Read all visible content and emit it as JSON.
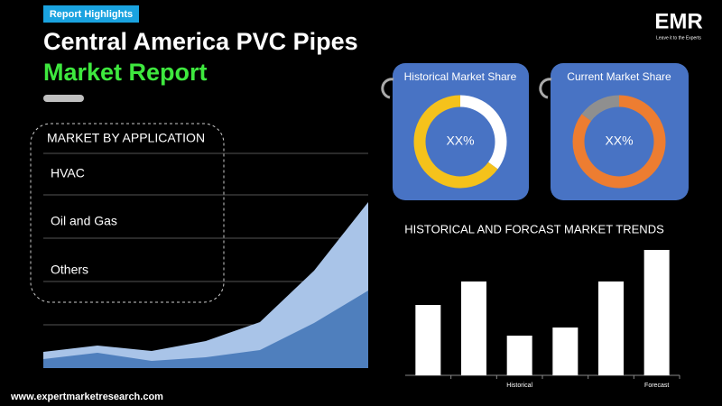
{
  "header": {
    "badge": "Report Highlights",
    "title_line1": "Central America PVC Pipes",
    "title_line2": "Market Report"
  },
  "logo": {
    "text": "EMR",
    "tagline": "Leave it to the Experts"
  },
  "application": {
    "title": "MARKET BY APPLICATION",
    "items": [
      "HVAC",
      "Oil and Gas",
      "Others"
    ]
  },
  "area_chart": {
    "type": "area",
    "series": [
      {
        "color": "#a9c4e8",
        "values": [
          18,
          25,
          19,
          30,
          51,
          108,
          184
        ]
      },
      {
        "color": "#4f7fbd",
        "values": [
          10,
          17,
          8,
          12,
          20,
          50,
          86
        ]
      }
    ]
  },
  "donuts": [
    {
      "title": "Historical Market Share",
      "label": "XX%",
      "values": [
        35,
        65
      ],
      "colors": [
        "#ffffff",
        "#f5c21b"
      ]
    },
    {
      "title": "Current Market Share",
      "label": "XX%",
      "values": [
        85,
        15
      ],
      "colors": [
        "#ed7d31",
        "#8f8f8f"
      ]
    }
  ],
  "bar_chart": {
    "type": "bar",
    "title": "HISTORICAL AND FORCAST MARKET TRENDS",
    "categories": [
      null,
      null,
      "Historical",
      null,
      null,
      "Forecast"
    ],
    "values": [
      78,
      104,
      44,
      53,
      104,
      139
    ],
    "color": "#ffffff"
  },
  "footer": {
    "url": "www.expertmarketresearch.com"
  }
}
